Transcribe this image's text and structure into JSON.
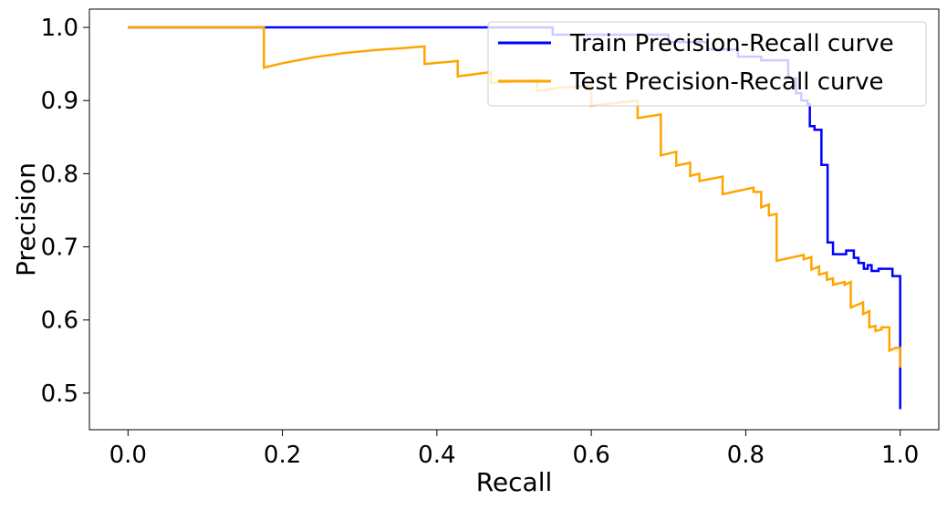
{
  "chart_data": {
    "type": "line",
    "title": "",
    "xlabel": "Recall",
    "ylabel": "Precision",
    "xlim": [
      -0.05,
      1.05
    ],
    "ylim": [
      0.45,
      1.025
    ],
    "xticks": [
      "0.0",
      "0.2",
      "0.4",
      "0.6",
      "0.8",
      "1.0"
    ],
    "yticks": [
      "0.5",
      "0.6",
      "0.7",
      "0.8",
      "0.9",
      "1.0"
    ],
    "grid": false,
    "legend_position": "top-right",
    "series": [
      {
        "name": "Train Precision-Recall curve",
        "color": "#0000ff",
        "points": [
          [
            0.0,
            1.0
          ],
          [
            0.55,
            1.0
          ],
          [
            0.55,
            0.99
          ],
          [
            0.7,
            0.99
          ],
          [
            0.7,
            0.98
          ],
          [
            0.75,
            0.98
          ],
          [
            0.75,
            0.97
          ],
          [
            0.79,
            0.97
          ],
          [
            0.79,
            0.96
          ],
          [
            0.82,
            0.96
          ],
          [
            0.82,
            0.955
          ],
          [
            0.855,
            0.955
          ],
          [
            0.855,
            0.93
          ],
          [
            0.865,
            0.93
          ],
          [
            0.865,
            0.91
          ],
          [
            0.872,
            0.91
          ],
          [
            0.872,
            0.9
          ],
          [
            0.88,
            0.9
          ],
          [
            0.88,
            0.895
          ],
          [
            0.883,
            0.895
          ],
          [
            0.883,
            0.865
          ],
          [
            0.889,
            0.865
          ],
          [
            0.889,
            0.86
          ],
          [
            0.898,
            0.86
          ],
          [
            0.898,
            0.812
          ],
          [
            0.906,
            0.812
          ],
          [
            0.906,
            0.706
          ],
          [
            0.913,
            0.706
          ],
          [
            0.913,
            0.69
          ],
          [
            0.93,
            0.69
          ],
          [
            0.93,
            0.695
          ],
          [
            0.94,
            0.695
          ],
          [
            0.94,
            0.685
          ],
          [
            0.946,
            0.685
          ],
          [
            0.946,
            0.678
          ],
          [
            0.953,
            0.678
          ],
          [
            0.953,
            0.67
          ],
          [
            0.958,
            0.67
          ],
          [
            0.958,
            0.675
          ],
          [
            0.963,
            0.675
          ],
          [
            0.963,
            0.667
          ],
          [
            0.972,
            0.667
          ],
          [
            0.972,
            0.67
          ],
          [
            0.99,
            0.67
          ],
          [
            0.99,
            0.66
          ],
          [
            1.0,
            0.66
          ],
          [
            1.0,
            0.478
          ]
        ]
      },
      {
        "name": "Test Precision-Recall curve",
        "color": "#ffa500",
        "points": [
          [
            0.0,
            1.0
          ],
          [
            0.176,
            1.0
          ],
          [
            0.176,
            0.945
          ],
          [
            0.2,
            0.951
          ],
          [
            0.24,
            0.959
          ],
          [
            0.28,
            0.965
          ],
          [
            0.32,
            0.969
          ],
          [
            0.36,
            0.972
          ],
          [
            0.384,
            0.974
          ],
          [
            0.384,
            0.95
          ],
          [
            0.427,
            0.954
          ],
          [
            0.427,
            0.933
          ],
          [
            0.47,
            0.939
          ],
          [
            0.47,
            0.924
          ],
          [
            0.53,
            0.928
          ],
          [
            0.53,
            0.913
          ],
          [
            0.56,
            0.918
          ],
          [
            0.6,
            0.92
          ],
          [
            0.6,
            0.893
          ],
          [
            0.66,
            0.9
          ],
          [
            0.66,
            0.876
          ],
          [
            0.69,
            0.881
          ],
          [
            0.69,
            0.825
          ],
          [
            0.71,
            0.83
          ],
          [
            0.71,
            0.811
          ],
          [
            0.728,
            0.815
          ],
          [
            0.728,
            0.797
          ],
          [
            0.74,
            0.8
          ],
          [
            0.74,
            0.79
          ],
          [
            0.77,
            0.796
          ],
          [
            0.77,
            0.772
          ],
          [
            0.81,
            0.781
          ],
          [
            0.81,
            0.775
          ],
          [
            0.82,
            0.775
          ],
          [
            0.82,
            0.754
          ],
          [
            0.83,
            0.758
          ],
          [
            0.83,
            0.743
          ],
          [
            0.84,
            0.745
          ],
          [
            0.84,
            0.681
          ],
          [
            0.875,
            0.689
          ],
          [
            0.875,
            0.683
          ],
          [
            0.885,
            0.686
          ],
          [
            0.885,
            0.669
          ],
          [
            0.895,
            0.673
          ],
          [
            0.895,
            0.662
          ],
          [
            0.905,
            0.665
          ],
          [
            0.905,
            0.655
          ],
          [
            0.913,
            0.657
          ],
          [
            0.913,
            0.648
          ],
          [
            0.928,
            0.652
          ],
          [
            0.928,
            0.648
          ],
          [
            0.936,
            0.652
          ],
          [
            0.936,
            0.617
          ],
          [
            0.952,
            0.624
          ],
          [
            0.952,
            0.608
          ],
          [
            0.96,
            0.612
          ],
          [
            0.96,
            0.59
          ],
          [
            0.968,
            0.592
          ],
          [
            0.968,
            0.585
          ],
          [
            0.976,
            0.587
          ],
          [
            0.976,
            0.59
          ],
          [
            0.986,
            0.59
          ],
          [
            0.986,
            0.558
          ],
          [
            0.994,
            0.562
          ],
          [
            0.994,
            0.562
          ],
          [
            1.0,
            0.562
          ],
          [
            1.0,
            0.535
          ]
        ]
      }
    ]
  }
}
